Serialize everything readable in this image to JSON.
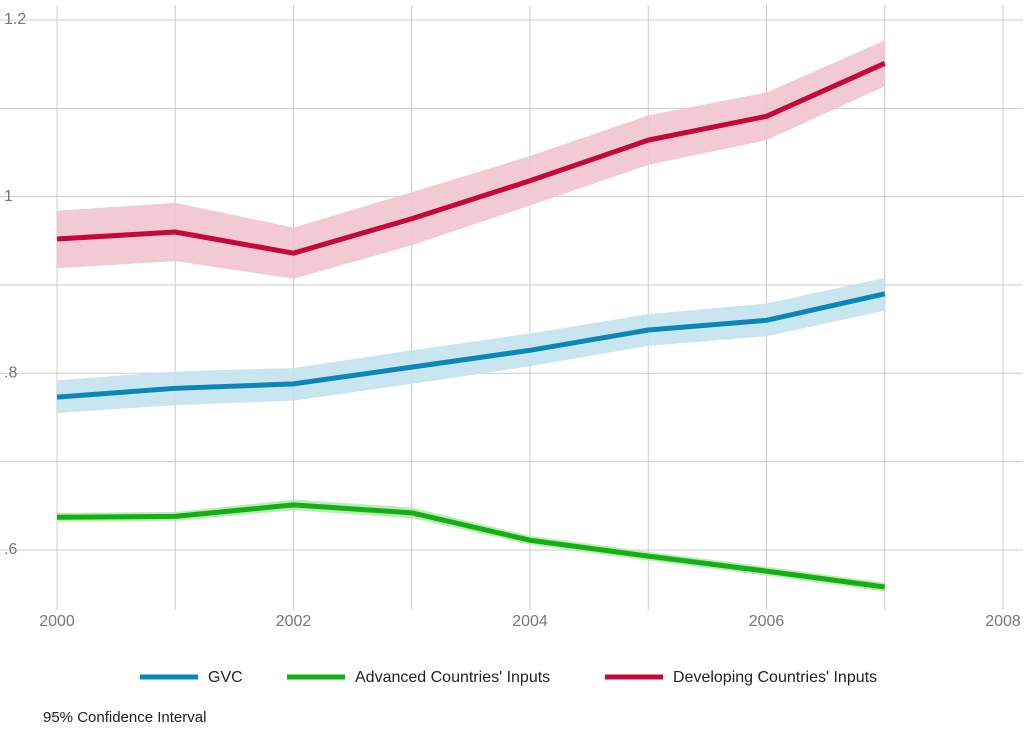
{
  "chart_data": {
    "type": "line",
    "x": [
      2000,
      2001,
      2002,
      2003,
      2004,
      2005,
      2006,
      2007
    ],
    "series": [
      {
        "name": "GVC",
        "color": "#0a87b8",
        "band_color": "#c3e2ee",
        "values": [
          0.773,
          0.783,
          0.788,
          0.807,
          0.826,
          0.849,
          0.86,
          0.89
        ],
        "lower": [
          0.755,
          0.764,
          0.769,
          0.788,
          0.808,
          0.831,
          0.842,
          0.871
        ],
        "upper": [
          0.792,
          0.802,
          0.806,
          0.826,
          0.845,
          0.867,
          0.879,
          0.908
        ]
      },
      {
        "name": "Advanced Countries' Inputs",
        "color": "#12b012",
        "band_color": "#b5e8b0",
        "values": [
          0.637,
          0.638,
          0.651,
          0.642,
          0.611,
          0.593,
          0.576,
          0.558
        ],
        "lower": [
          0.632,
          0.633,
          0.645,
          0.636,
          0.606,
          0.588,
          0.571,
          0.553
        ],
        "upper": [
          0.642,
          0.643,
          0.657,
          0.648,
          0.616,
          0.598,
          0.581,
          0.563
        ]
      },
      {
        "name": "Developing Countries' Inputs",
        "color": "#c5073a",
        "band_color": "#f0c4cf",
        "values": [
          0.952,
          0.96,
          0.936,
          0.975,
          1.018,
          1.064,
          1.091,
          1.151
        ],
        "lower": [
          0.919,
          0.927,
          0.907,
          0.945,
          0.99,
          1.036,
          1.064,
          1.125
        ],
        "upper": [
          0.984,
          0.993,
          0.965,
          1.005,
          1.046,
          1.092,
          1.118,
          1.177
        ]
      }
    ],
    "xlim": [
      2000,
      2008
    ],
    "ylim": [
      0.532,
      1.217
    ],
    "xticks": [
      2000,
      2002,
      2004,
      2006,
      2008
    ],
    "xminor": [
      2001,
      2003,
      2005,
      2007
    ],
    "yticks": [
      {
        "value": 0.6,
        "label": ".6"
      },
      {
        "value": 0.8,
        "label": ".8"
      },
      1,
      1.2
    ],
    "yminor": [
      0.7,
      0.9,
      1.1
    ],
    "grid": true,
    "note": "95% Confidence Interval"
  }
}
